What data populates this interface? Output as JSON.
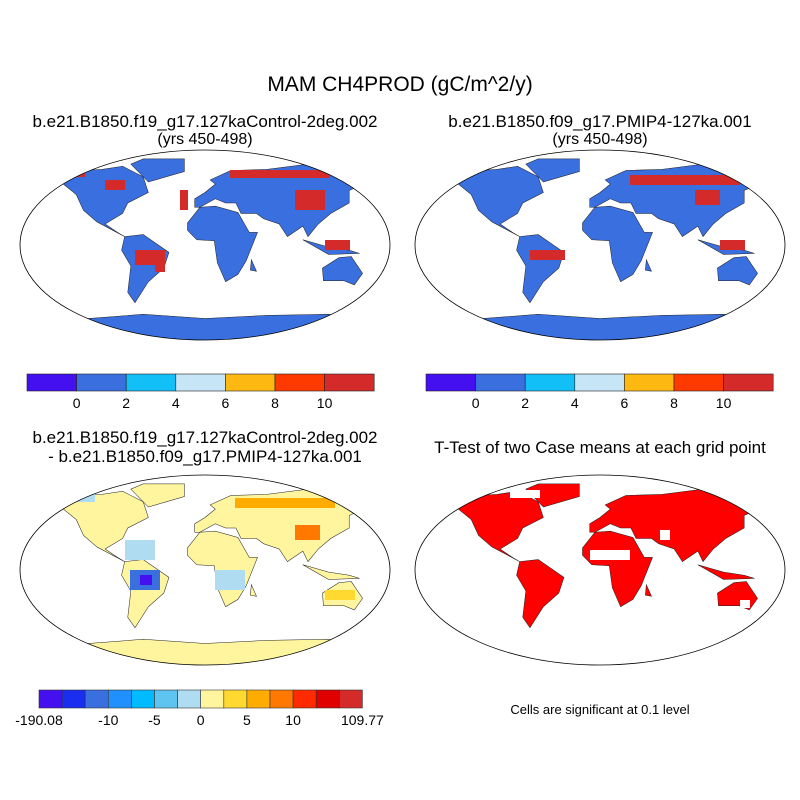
{
  "main_title": "MAM CH4PROD (gC/m^2/y)",
  "panels": [
    {
      "title_line1": "b.e21.B1850.f19_g17.127kaControl-2deg.002",
      "title_line2": "(yrs 450-498)"
    },
    {
      "title_line1": "b.e21.B1850.f09_g17.PMIP4-127ka.001",
      "title_line2": "(yrs 450-498)"
    },
    {
      "title_line1": "b.e21.B1850.f19_g17.127kaControl-2deg.002",
      "title_line2": "- b.e21.B1850.f09_g17.PMIP4-127ka.001"
    },
    {
      "title_line1": "T-Test of two Case means at each grid point",
      "footnote": "Cells are significant at 0.1 level"
    }
  ],
  "colorbar_abs": {
    "colors": [
      "#4410f0",
      "#3a6fe0",
      "#12bff7",
      "#c6e6f7",
      "#fdb912",
      "#ff3a00",
      "#d42a2a"
    ],
    "labels": [
      "0",
      "2",
      "4",
      "6",
      "8",
      "10"
    ]
  },
  "colorbar_diff": {
    "colors": [
      "#4410f0",
      "#1a2ef0",
      "#3a6fe0",
      "#2090ff",
      "#00bbff",
      "#60c4f0",
      "#b0dcf2",
      "#fff59e",
      "#ffd830",
      "#ffac00",
      "#ff7800",
      "#ff2a00",
      "#e00000",
      "#d42a2a"
    ],
    "labels": [
      {
        "text": "-190.08",
        "boundary": 0
      },
      {
        "text": "-10",
        "boundary": 3
      },
      {
        "text": "-5",
        "boundary": 5
      },
      {
        "text": "0",
        "boundary": 7
      },
      {
        "text": "5",
        "boundary": 9
      },
      {
        "text": "10",
        "boundary": 11
      },
      {
        "text": "109.77",
        "boundary": 14
      }
    ]
  },
  "colors": {
    "land_abs": "#3a6fe0",
    "hot": "#d42a2a",
    "land_diff": "#fff59e",
    "diff_blue": "#b0dcf2",
    "sig": "#ff0000"
  }
}
